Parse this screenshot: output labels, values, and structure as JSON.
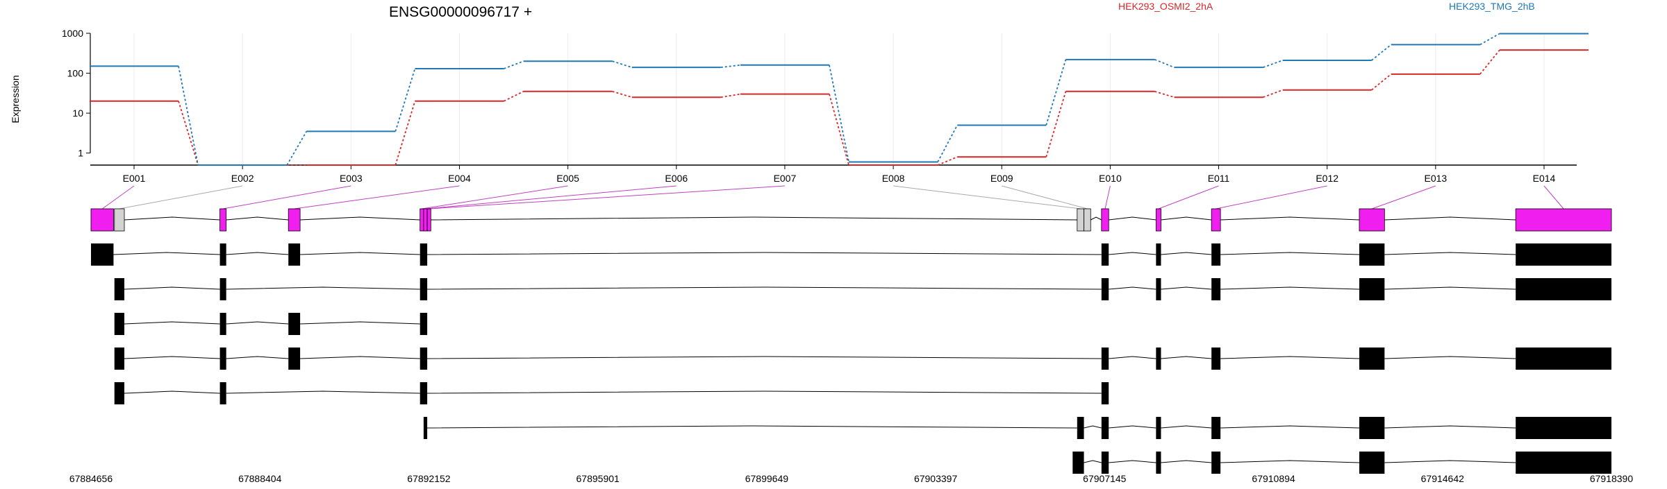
{
  "chart_data": {
    "type": "line",
    "title": "ENSG00000096717 +",
    "ylabel": "Expression",
    "yscale": "log",
    "yticks": [
      "1",
      "10",
      "100",
      "1000"
    ],
    "grid": "vertical",
    "legend_placement": "top",
    "categories": [
      "E001",
      "E002",
      "E003",
      "E004",
      "E005",
      "E006",
      "E007",
      "E008",
      "E009",
      "E010",
      "E011",
      "E012",
      "E013",
      "E014"
    ],
    "series": [
      {
        "name": "HEK293_OSMI2_2hA",
        "color": "#d62728",
        "values": [
          20,
          0.5,
          0.5,
          20,
          35,
          25,
          30,
          0.5,
          0.8,
          35,
          25,
          38,
          95,
          380
        ]
      },
      {
        "name": "HEK293_TMG_2hB",
        "color": "#1f77b4",
        "values": [
          150,
          0.5,
          3.5,
          130,
          200,
          140,
          160,
          0.6,
          5,
          220,
          140,
          210,
          520,
          980
        ]
      }
    ],
    "genomic_ticks": [
      "67884656",
      "67888404",
      "67892152",
      "67895901",
      "67899649",
      "67903397",
      "67907145",
      "67910894",
      "67914642",
      "67918390"
    ],
    "genomic_range": [
      67884656,
      67918390
    ],
    "exon_bins": [
      {
        "id": "E001",
        "start": 67884656,
        "end": 67885156,
        "status": "highlighted"
      },
      {
        "id": "E002",
        "start": 67885176,
        "end": 67885396,
        "status": "not-tested"
      },
      {
        "id": "E003",
        "start": 67887516,
        "end": 67887656,
        "status": "highlighted"
      },
      {
        "id": "E004",
        "start": 67889036,
        "end": 67889296,
        "status": "highlighted"
      },
      {
        "id": "E005",
        "start": 67891956,
        "end": 67892036,
        "status": "highlighted"
      },
      {
        "id": "E006",
        "start": 67892036,
        "end": 67892116,
        "status": "highlighted"
      },
      {
        "id": "E007",
        "start": 67892116,
        "end": 67892196,
        "status": "highlighted"
      },
      {
        "id": "E008",
        "start": 67906536,
        "end": 67906686,
        "status": "not-tested"
      },
      {
        "id": "E009",
        "start": 67906686,
        "end": 67906836,
        "status": "not-tested"
      },
      {
        "id": "E010",
        "start": 67907076,
        "end": 67907236,
        "status": "highlighted"
      },
      {
        "id": "E011",
        "start": 67908286,
        "end": 67908396,
        "status": "highlighted"
      },
      {
        "id": "E012",
        "start": 67909516,
        "end": 67909716,
        "status": "highlighted"
      },
      {
        "id": "E013",
        "start": 67912796,
        "end": 67913356,
        "status": "highlighted"
      },
      {
        "id": "E014",
        "start": 67916266,
        "end": 67918390,
        "status": "highlighted"
      }
    ],
    "transcripts": [
      [
        [
          67884656,
          67885156
        ],
        [
          67887516,
          67887656
        ],
        [
          67889036,
          67889296
        ],
        [
          67891956,
          67892116
        ],
        [
          67907076,
          67907236
        ],
        [
          67908286,
          67908396
        ],
        [
          67909516,
          67909716
        ],
        [
          67912796,
          67913356
        ],
        [
          67916266,
          67918390
        ]
      ],
      [
        [
          67885176,
          67885396
        ],
        [
          67887516,
          67887656
        ],
        [
          67891956,
          67892116
        ],
        [
          67907076,
          67907236
        ],
        [
          67908286,
          67908396
        ],
        [
          67909516,
          67909716
        ],
        [
          67912796,
          67913356
        ],
        [
          67916266,
          67918390
        ]
      ],
      [
        [
          67885176,
          67885396
        ],
        [
          67887516,
          67887656
        ],
        [
          67889036,
          67889296
        ],
        [
          67891956,
          67892116
        ]
      ],
      [
        [
          67885176,
          67885396
        ],
        [
          67887516,
          67887656
        ],
        [
          67889036,
          67889296
        ],
        [
          67891956,
          67892116
        ],
        [
          67907076,
          67907236
        ],
        [
          67908286,
          67908396
        ],
        [
          67909516,
          67909716
        ],
        [
          67912796,
          67913356
        ],
        [
          67916266,
          67918390
        ]
      ],
      [
        [
          67885176,
          67885396
        ],
        [
          67887516,
          67887656
        ],
        [
          67891956,
          67892116
        ],
        [
          67907076,
          67907236
        ]
      ],
      [
        [
          67892036,
          67892116
        ],
        [
          67906536,
          67906686
        ],
        [
          67907076,
          67907236
        ],
        [
          67908286,
          67908396
        ],
        [
          67909516,
          67909716
        ],
        [
          67912796,
          67913356
        ],
        [
          67916266,
          67918390
        ]
      ],
      [
        [
          67906436,
          67906686
        ],
        [
          67907076,
          67907236
        ],
        [
          67908286,
          67908396
        ],
        [
          67909516,
          67909716
        ],
        [
          67912796,
          67913356
        ],
        [
          67916266,
          67918390
        ]
      ]
    ],
    "colors": {
      "highlighted": "#f01ff0",
      "not_tested": "#d3d3d3",
      "transcript_exon": "#000000",
      "grid": "#ececec",
      "axis": "#000000"
    }
  }
}
